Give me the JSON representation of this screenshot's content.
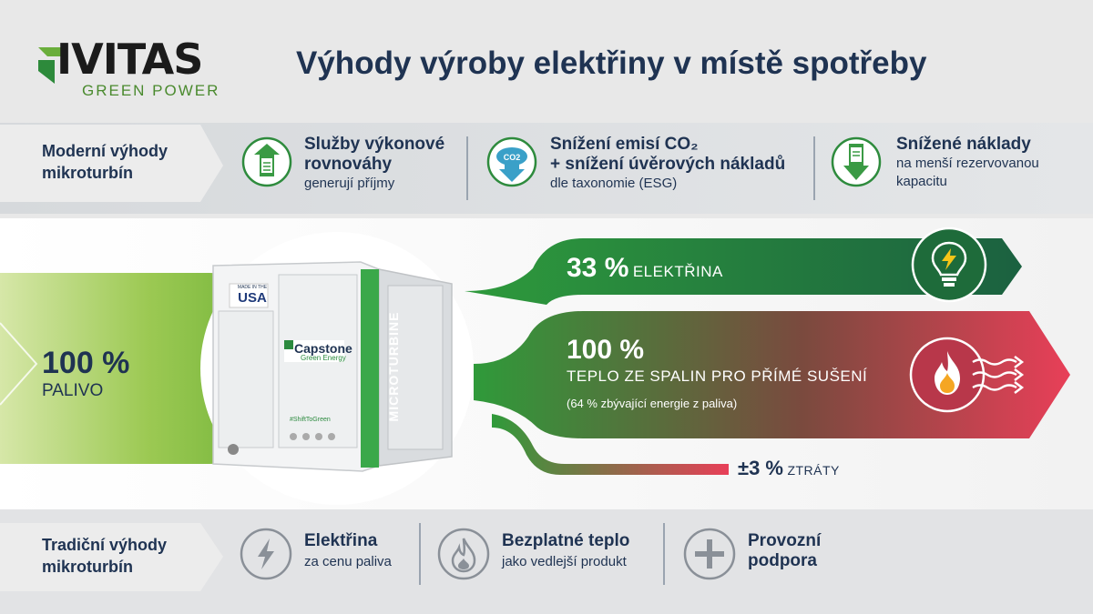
{
  "logo": {
    "name": "IVITAS",
    "subtitle": "GREEN POWER"
  },
  "title": "Výhody výroby elektřiny v místě spotřeby",
  "modern": {
    "label_line1": "Moderní výhody",
    "label_line2": "mikroturbín",
    "items": [
      {
        "title_line1": "Služby výkonové",
        "title_line2": "rovnováhy",
        "sub_line1": "generují příjmy",
        "sub_line2": "",
        "icon": "balance-services-icon"
      },
      {
        "title_line1": "Snížení emisí CO₂",
        "title_line2": "+ snížení úvěrových nákladů",
        "sub_line1": "dle taxonomie (ESG)",
        "sub_line2": "",
        "icon": "co2-reduction-icon"
      },
      {
        "title_line1": "Snížené náklady",
        "title_line2": "",
        "sub_line1": "na menší rezervovanou",
        "sub_line2": "kapacitu",
        "icon": "reduced-costs-icon"
      }
    ]
  },
  "input": {
    "value": "100 %",
    "label": "PALIVO"
  },
  "machine": {
    "brand": "Capstone",
    "brand_sub": "Green Energy",
    "side_text": "MICROTURBINE",
    "badge_top": "MADE IN THE",
    "badge_main": "USA",
    "tag": "#ShiftToGreen"
  },
  "outputs": {
    "electricity": {
      "value": "33 %",
      "label": "ELEKTŘINA"
    },
    "heat": {
      "value": "100 %",
      "label": "TEPLO ZE SPALIN PRO PŘÍMÉ SUŠENÍ",
      "note": "(64 % zbývající energie z paliva)"
    },
    "losses": {
      "value": "±3 %",
      "label": "ZTRÁTY"
    }
  },
  "traditional": {
    "label_line1": "Tradiční výhody",
    "label_line2": "mikroturbín",
    "items": [
      {
        "title_line1": "Elektřina",
        "title_line2": "",
        "sub": "za cenu paliva",
        "icon": "lightning-icon"
      },
      {
        "title_line1": "Bezplatné teplo",
        "title_line2": "",
        "sub": "jako vedlejší produkt",
        "icon": "flame-icon"
      },
      {
        "title_line1": "Provozní",
        "title_line2": "podpora",
        "sub": "",
        "icon": "plus-icon"
      }
    ]
  },
  "colors": {
    "navy": "#1f3352",
    "green": "#3f8f3a",
    "dark_green": "#1e6b3a",
    "red": "#e23e57",
    "lime": "#8cc04b"
  }
}
